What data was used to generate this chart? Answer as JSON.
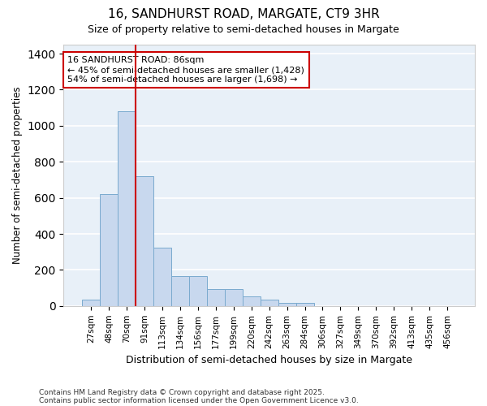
{
  "title_line1": "16, SANDHURST ROAD, MARGATE, CT9 3HR",
  "title_line2": "Size of property relative to semi-detached houses in Margate",
  "xlabel": "Distribution of semi-detached houses by size in Margate",
  "ylabel": "Number of semi-detached properties",
  "categories": [
    "27sqm",
    "48sqm",
    "70sqm",
    "91sqm",
    "113sqm",
    "134sqm",
    "156sqm",
    "177sqm",
    "199sqm",
    "220sqm",
    "242sqm",
    "263sqm",
    "284sqm",
    "306sqm",
    "327sqm",
    "349sqm",
    "370sqm",
    "392sqm",
    "413sqm",
    "435sqm",
    "456sqm"
  ],
  "values": [
    35,
    620,
    1080,
    720,
    325,
    165,
    165,
    93,
    93,
    55,
    35,
    18,
    18,
    0,
    0,
    0,
    0,
    0,
    0,
    0,
    0
  ],
  "bar_color": "#c8d8ee",
  "bar_edge_color": "#7aaace",
  "background_color": "#e8f0f8",
  "grid_color": "#ffffff",
  "vline_x": 2.5,
  "vline_color": "#cc0000",
  "annotation_title": "16 SANDHURST ROAD: 86sqm",
  "annotation_line1": "← 45% of semi-detached houses are smaller (1,428)",
  "annotation_line2": "54% of semi-detached houses are larger (1,698) →",
  "annotation_box_color": "#cc0000",
  "ylim": [
    0,
    1450
  ],
  "yticks": [
    0,
    200,
    400,
    600,
    800,
    1000,
    1200,
    1400
  ],
  "footnote_line1": "Contains HM Land Registry data © Crown copyright and database right 2025.",
  "footnote_line2": "Contains public sector information licensed under the Open Government Licence v3.0."
}
